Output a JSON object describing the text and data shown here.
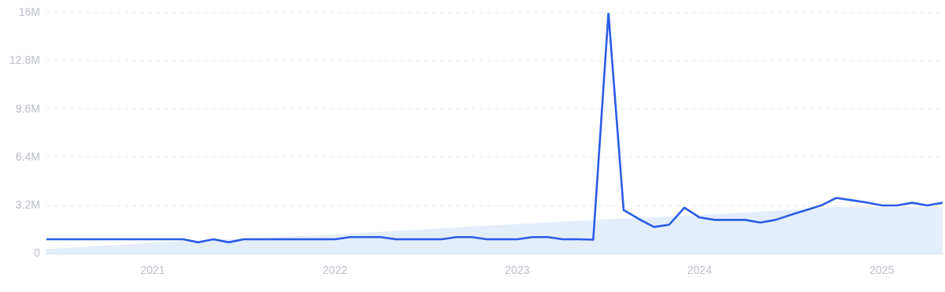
{
  "chart_data": {
    "type": "line",
    "xlim": [
      "2020-06",
      "2025-05"
    ],
    "xticks": [
      "2021",
      "2022",
      "2023",
      "2024",
      "2025"
    ],
    "ylim": [
      0,
      16000000
    ],
    "yticks": [
      0,
      {
        "value": 3200000,
        "label": "3.2M"
      },
      {
        "value": 6400000,
        "label": "6.4M"
      },
      {
        "value": 9600000,
        "label": "9.6M"
      },
      {
        "value": 12800000,
        "label": "12.8M"
      },
      {
        "value": 16000000,
        "label": "16M"
      }
    ],
    "grid": "y",
    "marker": "none",
    "line_style": "solid",
    "legend": false,
    "series": [
      {
        "type": "area",
        "color": "#e4eefb",
        "x": [
          "2020-06",
          "2021-03",
          "2022-01",
          "2022-10",
          "2023-06",
          "2024-01",
          "2024-07",
          "2024-10",
          "2025-05"
        ],
        "values": [
          300000,
          830000,
          1260000,
          1800000,
          2240000,
          2560000,
          2900000,
          3100000,
          3100000
        ]
      },
      {
        "color": "#2b5ce6",
        "x": [
          "2020-06",
          "2020-07",
          "2020-08",
          "2020-09",
          "2020-10",
          "2020-11",
          "2020-12",
          "2021-01",
          "2021-02",
          "2021-03",
          "2021-04",
          "2021-05",
          "2021-06",
          "2021-07",
          "2021-08",
          "2021-09",
          "2021-10",
          "2021-11",
          "2021-12",
          "2022-01",
          "2022-02",
          "2022-03",
          "2022-04",
          "2022-05",
          "2022-06",
          "2022-07",
          "2022-08",
          "2022-09",
          "2022-10",
          "2022-11",
          "2022-12",
          "2023-01",
          "2023-02",
          "2023-03",
          "2023-04",
          "2023-05",
          "2023-06",
          "2023-07",
          "2023-08",
          "2023-09",
          "2023-10",
          "2023-11",
          "2023-12",
          "2024-01",
          "2024-02",
          "2024-03",
          "2024-04",
          "2024-05",
          "2024-06",
          "2024-07",
          "2024-08",
          "2024-09",
          "2024-10",
          "2024-11",
          "2024-12",
          "2025-01",
          "2025-02",
          "2025-03",
          "2025-04",
          "2025-05"
        ],
        "values": [
          950000,
          950000,
          950000,
          950000,
          950000,
          950000,
          950000,
          950000,
          950000,
          950000,
          750000,
          950000,
          750000,
          950000,
          950000,
          950000,
          950000,
          950000,
          950000,
          950000,
          1100000,
          1100000,
          1100000,
          950000,
          950000,
          950000,
          950000,
          1100000,
          1100000,
          950000,
          950000,
          950000,
          1100000,
          1100000,
          950000,
          950000,
          930000,
          16000000,
          2890000,
          2300000,
          1770000,
          1920000,
          3050000,
          2400000,
          2240000,
          2240000,
          2240000,
          2060000,
          2240000,
          2570000,
          2890000,
          3200000,
          3700000,
          3550000,
          3400000,
          3200000,
          3200000,
          3380000,
          3200000,
          3380000
        ]
      }
    ]
  }
}
